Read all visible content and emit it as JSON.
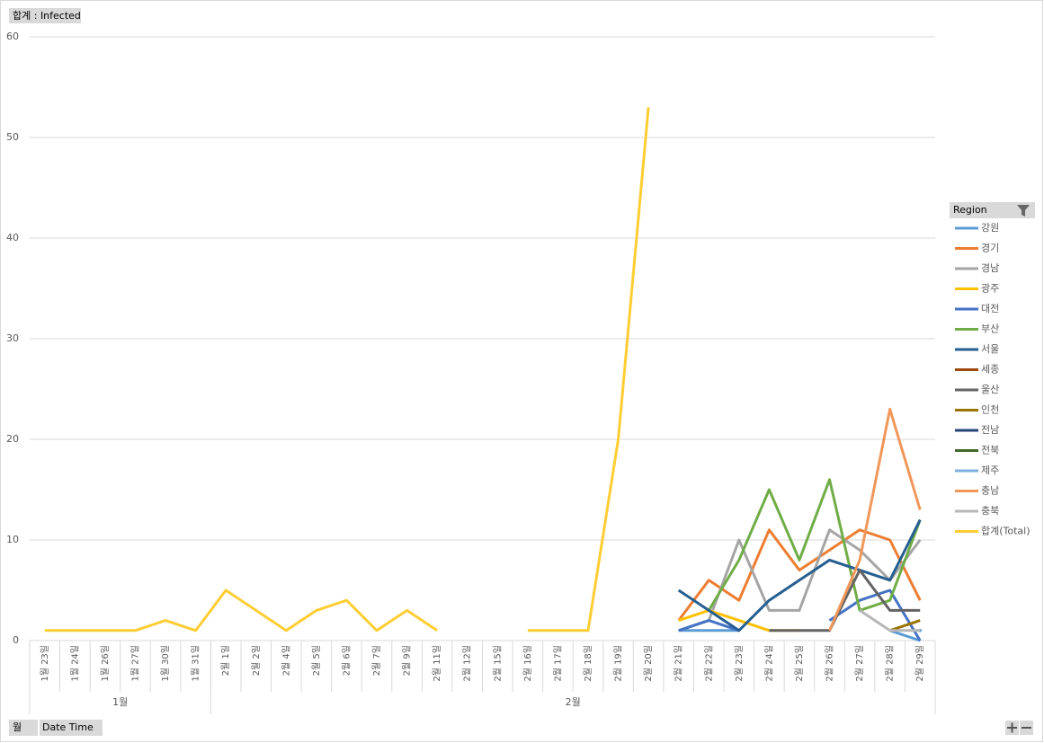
{
  "chart_data": {
    "type": "line",
    "value_field": "합계 : Infected",
    "legend_title": "Region",
    "axis_fields": [
      "월",
      "Date Time"
    ],
    "categories": [
      "1월 23일",
      "1월 24일",
      "1월 26일",
      "1월 27일",
      "1월 30일",
      "1월 31일",
      "2월 1일",
      "2월 2일",
      "2월 4일",
      "2월 5일",
      "2월 6일",
      "2월 7일",
      "2월 9일",
      "2월 11일",
      "2월 12일",
      "2월 15일",
      "2월 16일",
      "2월 17일",
      "2월 18일",
      "2월 19일",
      "2월 20일",
      "2월 21일",
      "2월 22일",
      "2월 23일",
      "2월 24일",
      "2월 25일",
      "2월 26일",
      "2월 27일",
      "2월 28일",
      "2월 29일"
    ],
    "category_groups": [
      {
        "label": "1월",
        "size": 6
      },
      {
        "label": "2월",
        "size": 24
      }
    ],
    "ylim": [
      0,
      60
    ],
    "yticks": [
      0,
      10,
      20,
      30,
      40,
      50,
      60
    ],
    "grid": true,
    "series": [
      {
        "name": "강원",
        "color": "#5b9bd5",
        "values": [
          null,
          null,
          null,
          null,
          null,
          null,
          null,
          null,
          null,
          null,
          null,
          null,
          null,
          null,
          null,
          null,
          null,
          null,
          null,
          null,
          null,
          1,
          1,
          1,
          null,
          null,
          null,
          null,
          1,
          0
        ]
      },
      {
        "name": "경기",
        "color": "#ed7d31",
        "values": [
          null,
          null,
          null,
          null,
          null,
          null,
          null,
          null,
          null,
          null,
          null,
          null,
          null,
          null,
          null,
          null,
          null,
          null,
          null,
          null,
          null,
          2,
          6,
          4,
          11,
          7,
          9,
          11,
          10,
          4
        ]
      },
      {
        "name": "경남",
        "color": "#a5a5a5",
        "values": [
          null,
          null,
          null,
          null,
          null,
          null,
          null,
          null,
          null,
          null,
          null,
          null,
          null,
          null,
          null,
          null,
          null,
          null,
          null,
          null,
          null,
          1,
          2,
          10,
          3,
          3,
          11,
          9,
          6,
          10
        ]
      },
      {
        "name": "광주",
        "color": "#ffc000",
        "values": [
          null,
          null,
          null,
          null,
          null,
          null,
          null,
          null,
          null,
          null,
          null,
          null,
          null,
          null,
          null,
          null,
          null,
          null,
          null,
          null,
          null,
          2,
          3,
          2,
          1,
          1,
          null,
          null,
          null,
          null
        ]
      },
      {
        "name": "대전",
        "color": "#4472c4",
        "values": [
          null,
          null,
          null,
          null,
          null,
          null,
          null,
          null,
          null,
          null,
          null,
          null,
          null,
          null,
          null,
          null,
          null,
          null,
          null,
          null,
          null,
          1,
          2,
          1,
          null,
          null,
          2,
          4,
          5,
          0
        ]
      },
      {
        "name": "부산",
        "color": "#70ad47",
        "values": [
          null,
          null,
          null,
          null,
          null,
          null,
          null,
          null,
          null,
          null,
          null,
          null,
          null,
          null,
          null,
          null,
          null,
          null,
          null,
          null,
          null,
          null,
          3,
          8,
          15,
          8,
          16,
          3,
          4,
          12
        ]
      },
      {
        "name": "서울",
        "color": "#255e91",
        "values": [
          null,
          null,
          null,
          null,
          null,
          null,
          null,
          null,
          null,
          null,
          null,
          null,
          null,
          null,
          null,
          null,
          null,
          null,
          null,
          null,
          null,
          5,
          3,
          1,
          4,
          6,
          8,
          7,
          6,
          12
        ]
      },
      {
        "name": "세종",
        "color": "#9e480e",
        "values": [
          null,
          null,
          null,
          null,
          null,
          null,
          null,
          null,
          null,
          null,
          null,
          null,
          null,
          null,
          null,
          null,
          null,
          null,
          null,
          null,
          null,
          null,
          null,
          null,
          null,
          null,
          null,
          null,
          null,
          null
        ]
      },
      {
        "name": "울산",
        "color": "#636363",
        "values": [
          null,
          null,
          null,
          null,
          null,
          null,
          null,
          null,
          null,
          null,
          null,
          null,
          null,
          null,
          null,
          null,
          null,
          null,
          null,
          null,
          null,
          null,
          null,
          null,
          1,
          1,
          1,
          7,
          3,
          3
        ]
      },
      {
        "name": "인천",
        "color": "#997300",
        "values": [
          null,
          null,
          null,
          null,
          null,
          null,
          null,
          null,
          null,
          null,
          null,
          null,
          null,
          null,
          null,
          null,
          null,
          null,
          null,
          null,
          null,
          null,
          null,
          null,
          null,
          null,
          null,
          null,
          1,
          2
        ]
      },
      {
        "name": "전남",
        "color": "#264478",
        "values": [
          null,
          null,
          null,
          null,
          null,
          null,
          null,
          null,
          null,
          null,
          null,
          null,
          null,
          null,
          null,
          null,
          null,
          null,
          null,
          null,
          null,
          null,
          null,
          null,
          null,
          null,
          null,
          null,
          null,
          null
        ]
      },
      {
        "name": "전북",
        "color": "#43682b",
        "values": [
          null,
          null,
          null,
          null,
          null,
          null,
          null,
          null,
          null,
          null,
          null,
          null,
          null,
          null,
          null,
          null,
          null,
          null,
          null,
          null,
          null,
          null,
          null,
          null,
          null,
          null,
          null,
          null,
          null,
          null
        ]
      },
      {
        "name": "제주",
        "color": "#7cafdd",
        "values": [
          null,
          null,
          null,
          null,
          null,
          null,
          null,
          null,
          null,
          null,
          null,
          null,
          null,
          null,
          null,
          null,
          null,
          null,
          null,
          null,
          null,
          null,
          null,
          null,
          null,
          null,
          null,
          null,
          null,
          1
        ]
      },
      {
        "name": "충남",
        "color": "#f1975a",
        "values": [
          null,
          null,
          null,
          null,
          null,
          null,
          null,
          null,
          null,
          null,
          null,
          null,
          null,
          null,
          null,
          null,
          null,
          null,
          null,
          null,
          null,
          null,
          null,
          null,
          null,
          null,
          1,
          8,
          23,
          13
        ]
      },
      {
        "name": "충북",
        "color": "#b7b7b7",
        "values": [
          null,
          null,
          null,
          null,
          null,
          null,
          null,
          null,
          null,
          null,
          null,
          null,
          null,
          null,
          null,
          null,
          null,
          null,
          null,
          null,
          null,
          null,
          null,
          null,
          null,
          null,
          null,
          3,
          1,
          1
        ]
      },
      {
        "name": "합계(Total)",
        "color": "#ffcd33",
        "values": [
          1,
          1,
          1,
          1,
          2,
          1,
          5,
          3,
          1,
          3,
          4,
          1,
          3,
          1,
          null,
          null,
          1,
          1,
          1,
          20,
          53,
          null,
          null,
          null,
          null,
          null,
          null,
          null,
          null,
          null
        ]
      }
    ]
  }
}
